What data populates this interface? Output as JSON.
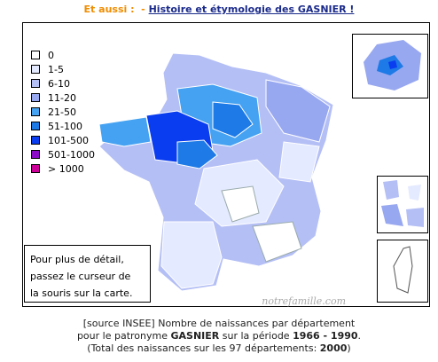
{
  "header": {
    "prefix": "Et aussi :",
    "separator": "-",
    "link": "Histoire et étymologie des GASNIER !"
  },
  "legend": [
    {
      "label": "0",
      "color": "#ffffff"
    },
    {
      "label": "1-5",
      "color": "#e4eaff"
    },
    {
      "label": "6-10",
      "color": "#b4bff5"
    },
    {
      "label": "11-20",
      "color": "#98a8f0"
    },
    {
      "label": "21-50",
      "color": "#45a2f2"
    },
    {
      "label": "51-100",
      "color": "#1e7ae6"
    },
    {
      "label": "101-500",
      "color": "#0a3cf0"
    },
    {
      "label": "501-1000",
      "color": "#8a0ac8"
    },
    {
      "label": "> 1000",
      "color": "#cc0099"
    }
  ],
  "info_box": {
    "lines": [
      "Pour plus de détail,",
      "passez le curseur de",
      "la souris sur la carte."
    ]
  },
  "watermark": "notrefamille.com",
  "caption": {
    "line1": "[source INSEE] Nombre de naissances par département",
    "line2": {
      "before": "pour le patronyme",
      "name": "GASNIER",
      "middle": "sur la période",
      "period": "1966 - 1990",
      "after": "."
    },
    "line3": {
      "before": "(Total des naissances sur les 97 départements:",
      "total": "2000",
      "after": ")"
    }
  }
}
